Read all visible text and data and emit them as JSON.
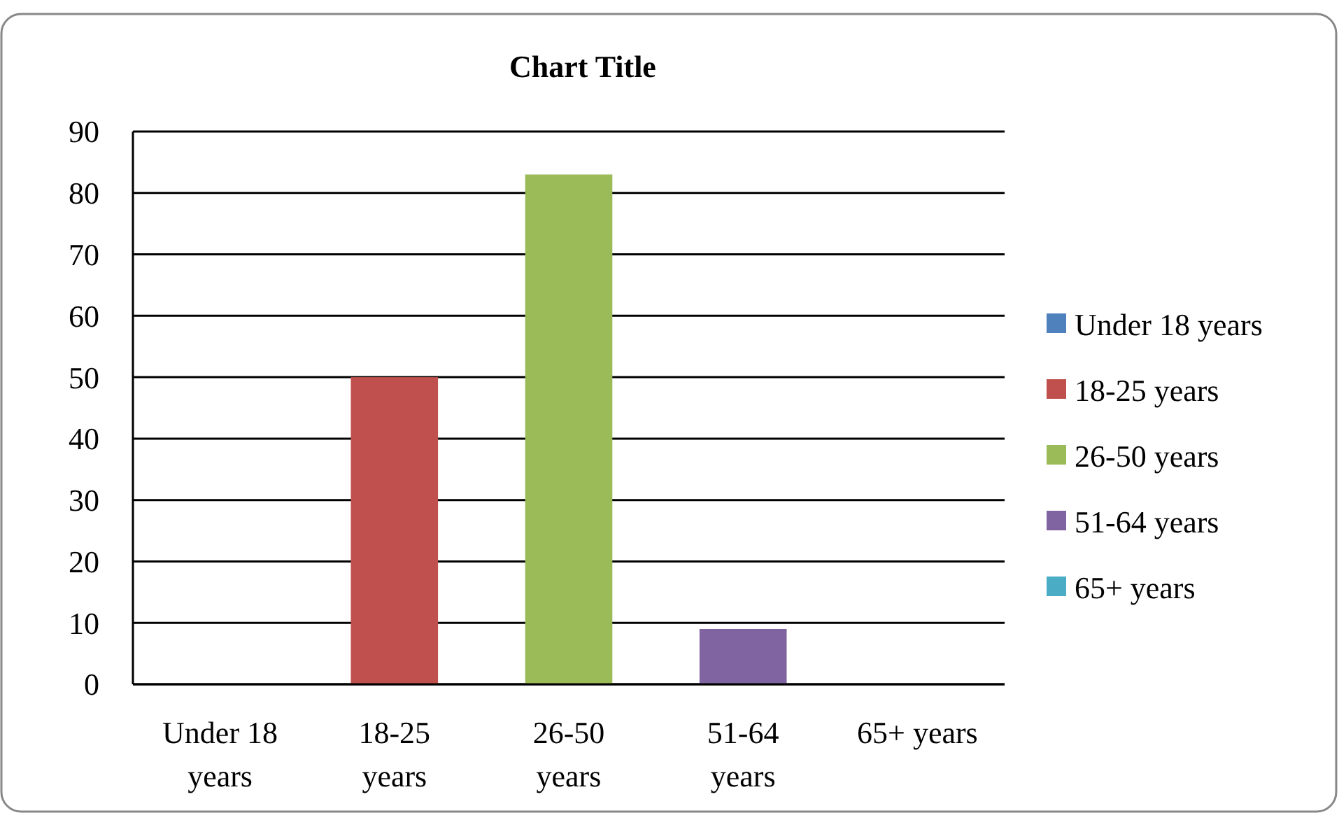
{
  "chart_data": {
    "type": "bar",
    "title": "Chart Title",
    "categories": [
      "Under 18 years",
      "18-25 years",
      "26-50 years",
      "51-64 years",
      "65+ years"
    ],
    "series": [
      {
        "name": "Under 18 years",
        "color": "#4f81bd",
        "values": [
          0,
          null,
          null,
          null,
          null
        ]
      },
      {
        "name": "18-25 years",
        "color": "#c0504d",
        "values": [
          null,
          50,
          null,
          null,
          null
        ]
      },
      {
        "name": "26-50 years",
        "color": "#9bbb59",
        "values": [
          null,
          null,
          83,
          null,
          null
        ]
      },
      {
        "name": "51-64 years",
        "color": "#8064a2",
        "values": [
          null,
          null,
          null,
          9,
          null
        ]
      },
      {
        "name": "65+ years",
        "color": "#4bacc6",
        "values": [
          null,
          null,
          null,
          null,
          0
        ]
      }
    ],
    "ylim": [
      0,
      90
    ],
    "yticks": [
      0,
      10,
      20,
      30,
      40,
      50,
      60,
      70,
      80,
      90
    ],
    "grid": "y",
    "legend": "right"
  }
}
